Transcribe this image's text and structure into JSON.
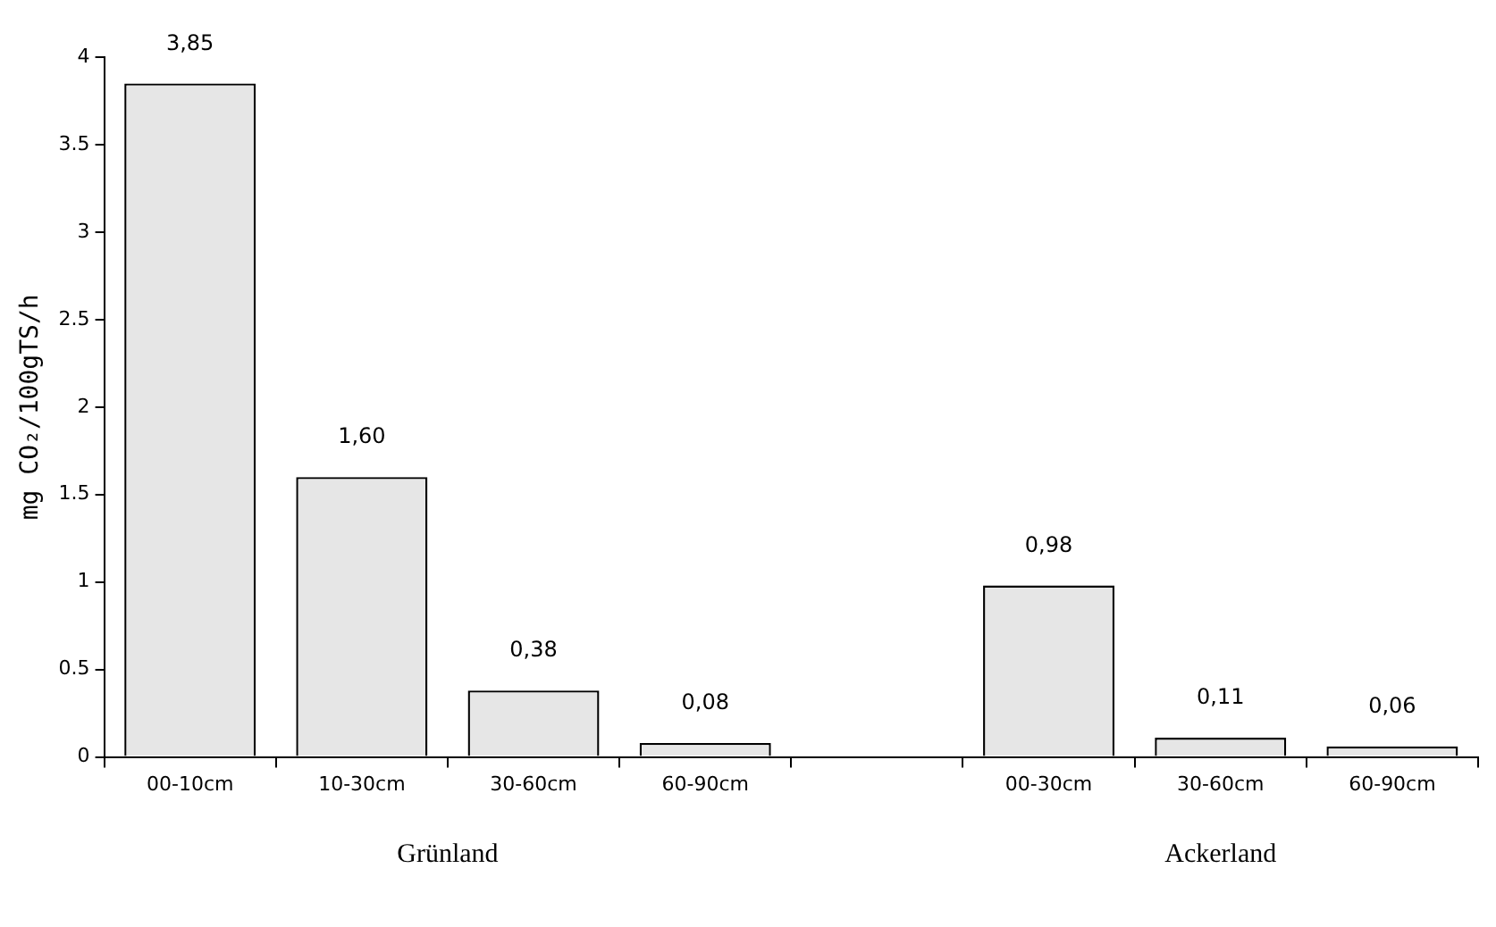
{
  "chart_data": {
    "type": "bar",
    "ylabel": "mg CO₂/100gTS/h",
    "categories": [
      "00-10cm",
      "10-30cm",
      "30-60cm",
      "60-90cm",
      null,
      "00-30cm",
      "30-60cm",
      "60-90cm"
    ],
    "values": [
      3.85,
      1.6,
      0.38,
      0.08,
      null,
      0.98,
      0.11,
      0.06
    ],
    "value_labels": [
      "3,85",
      "1,60",
      "0,38",
      "0,08",
      null,
      "0,98",
      "0,11",
      "0,06"
    ],
    "color": "#e6e6e6",
    "ylim": [
      0,
      4
    ],
    "yticks": [
      0,
      0.5,
      1,
      1.5,
      2,
      2.5,
      3,
      3.5,
      4
    ],
    "grid": false,
    "legend": false,
    "annotations": [
      "Grünland",
      "Ackerland"
    ]
  }
}
